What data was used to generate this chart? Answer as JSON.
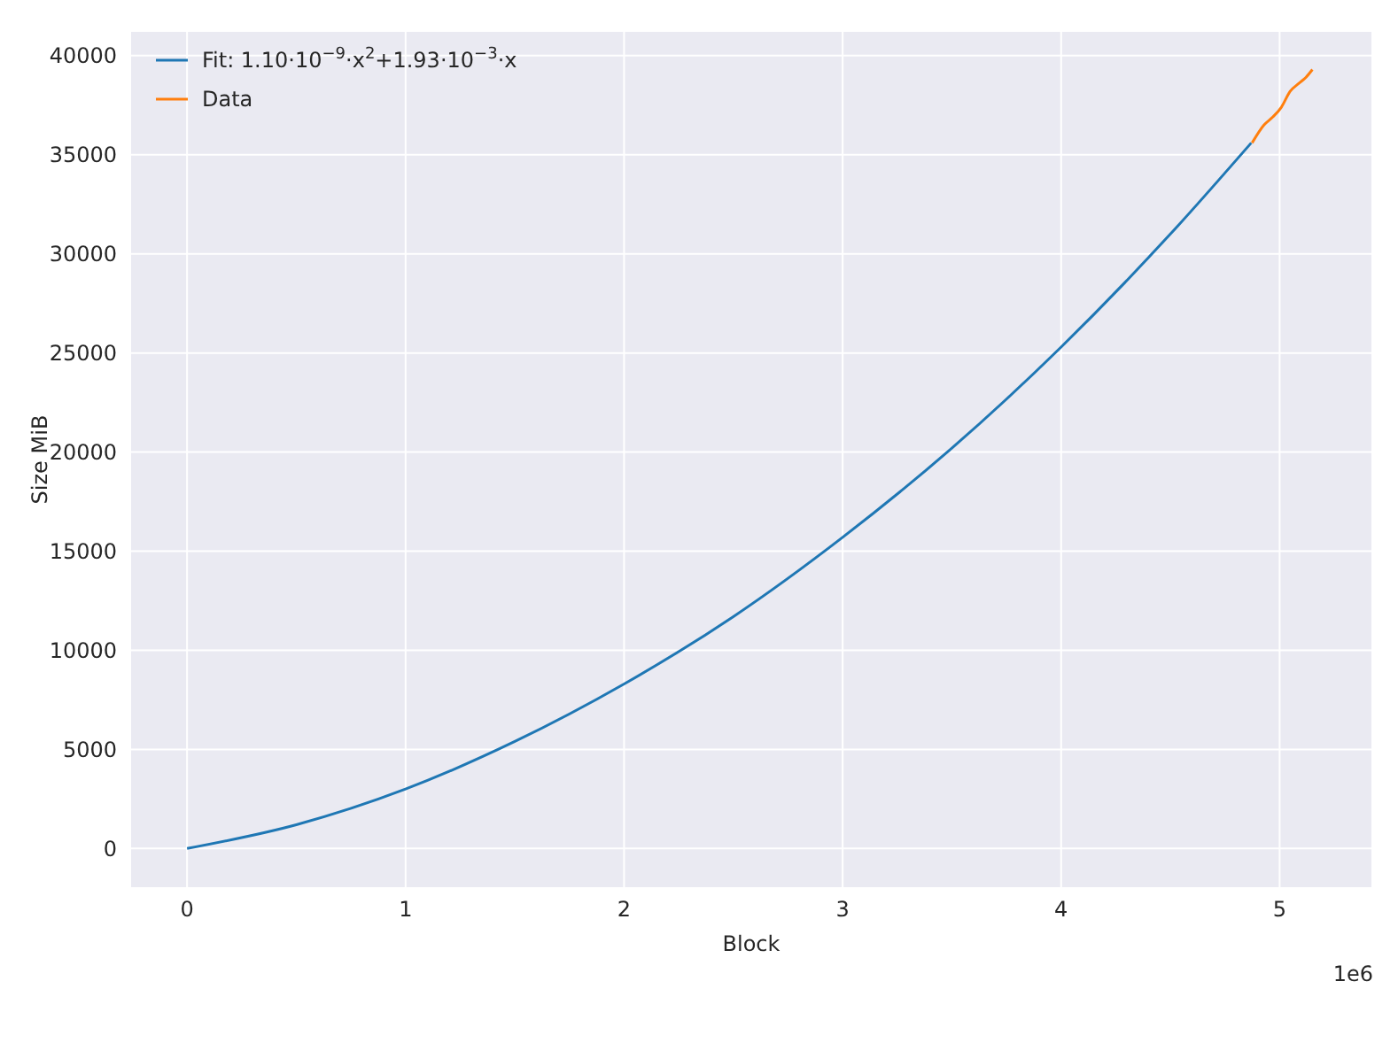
{
  "chart_data": {
    "type": "line",
    "xlabel": "Block",
    "ylabel": "Size MiB",
    "annotations": [
      "1e6"
    ],
    "xlim": [
      -0.256,
      5.42
    ],
    "ylim": [
      -1950,
      41200
    ],
    "xticks": [
      0,
      1,
      2,
      3,
      4,
      5
    ],
    "yticks": [
      0,
      5000,
      10000,
      15000,
      20000,
      25000,
      30000,
      35000,
      40000
    ],
    "grid": true,
    "legend": "top left",
    "series": [
      {
        "name": "Fit: 1.10·10$^{−9}$·x$^{2}$+1.93·10$^{−3}$·x",
        "color": "#1f77b4",
        "x": [
          0,
          0.5,
          1,
          1.5,
          2,
          2.5,
          3,
          3.5,
          4,
          4.5,
          4.87
        ],
        "values": [
          0,
          1200,
          3000,
          5400,
          8300,
          11700,
          15700,
          20200,
          25300,
          31000,
          35600
        ]
      },
      {
        "name": "Data",
        "color": "#ff7f0e",
        "x": [
          4.874,
          4.928,
          4.968,
          5.008,
          5.048,
          5.088,
          5.12,
          5.15
        ],
        "values": [
          35600,
          36500,
          36900,
          37400,
          38200,
          38600,
          38900,
          39300
        ]
      }
    ]
  }
}
